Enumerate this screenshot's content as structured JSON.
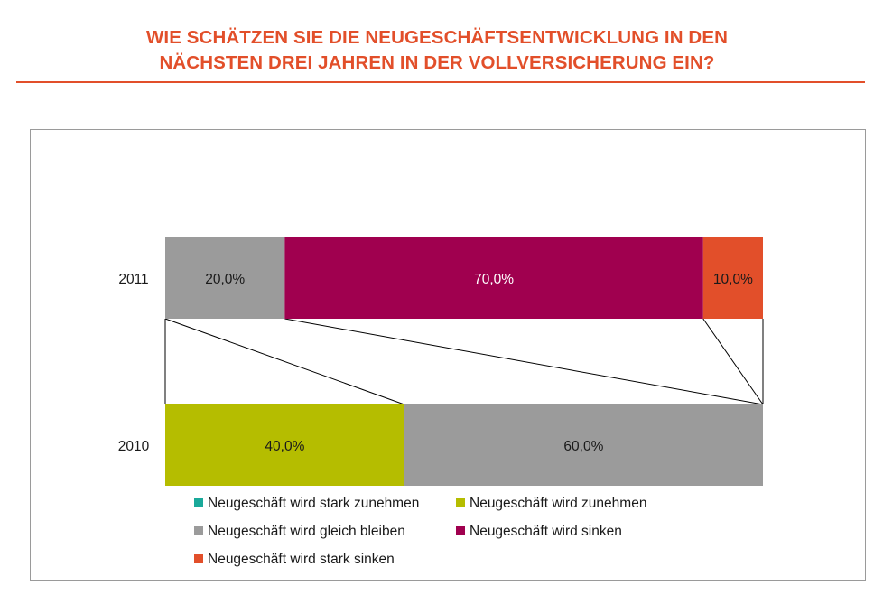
{
  "title": {
    "line1": "WIE SCHÄTZEN SIE DIE NEUGESCHÄFTSENTWICKLUNG IN DEN",
    "line2": "NÄCHSTEN DREI JAHREN IN DER VOLLVERSICHERUNG EIN?"
  },
  "colors": {
    "accent": "#e24f2a",
    "stark_zunehmen": "#1aa99a",
    "zunehmen": "#b5bd00",
    "gleich": "#9b9b9b",
    "sinken": "#a0004f",
    "stark_sinken": "#e24f2a"
  },
  "chart_data": {
    "type": "bar",
    "orientation": "horizontal",
    "stacked": true,
    "percent": true,
    "categories": [
      "2011",
      "2010"
    ],
    "series": [
      {
        "name": "Neugeschäft wird stark zunehmen",
        "color": "#1aa99a",
        "values": [
          0,
          0
        ],
        "labels": [
          "",
          ""
        ]
      },
      {
        "name": "Neugeschäft wird zunehmen",
        "color": "#b5bd00",
        "values": [
          0,
          40
        ],
        "labels": [
          "",
          "40,0%"
        ]
      },
      {
        "name": "Neugeschäft wird gleich bleiben",
        "color": "#9b9b9b",
        "values": [
          20,
          60
        ],
        "labels": [
          "20,0%",
          "60,0%"
        ]
      },
      {
        "name": "Neugeschäft wird sinken",
        "color": "#a0004f",
        "values": [
          70,
          0
        ],
        "labels": [
          "70,0%",
          ""
        ]
      },
      {
        "name": "Neugeschäft wird stark sinken",
        "color": "#e24f2a",
        "values": [
          10,
          0
        ],
        "labels": [
          "10,0%",
          ""
        ]
      }
    ],
    "xlim": [
      0,
      100
    ],
    "grid": false,
    "legend_position": "bottom",
    "series_lines": true
  }
}
